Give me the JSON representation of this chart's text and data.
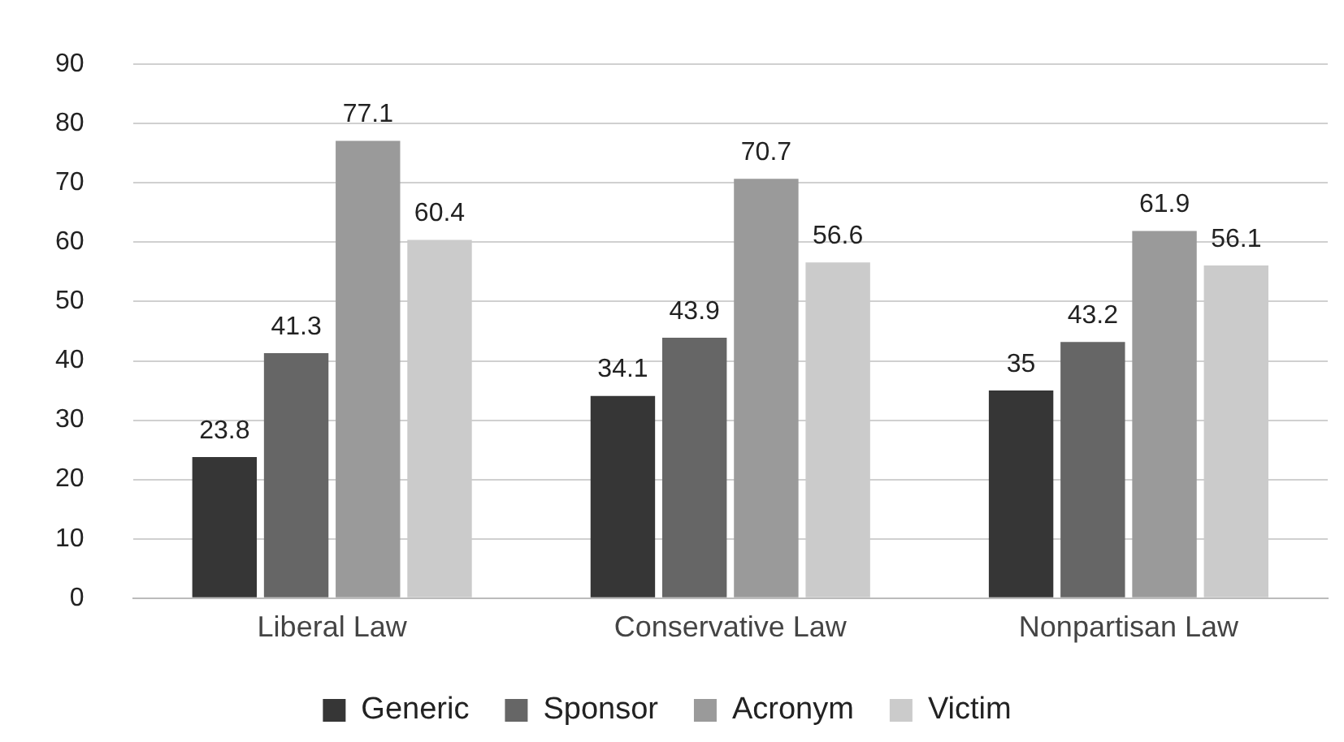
{
  "chart_data": {
    "type": "bar",
    "categories": [
      "Liberal Law",
      "Conservative Law",
      "Nonpartisan Law"
    ],
    "series": [
      {
        "name": "Generic",
        "color": "#363636",
        "values": [
          23.8,
          34.1,
          35
        ]
      },
      {
        "name": "Sponsor",
        "color": "#666666",
        "values": [
          41.3,
          43.9,
          43.2
        ]
      },
      {
        "name": "Acronym",
        "color": "#9a9a9a",
        "values": [
          77.1,
          70.7,
          61.9
        ]
      },
      {
        "name": "Victim",
        "color": "#cbcbcb",
        "values": [
          60.4,
          56.6,
          56.1
        ]
      }
    ],
    "ylim": [
      0,
      90
    ],
    "yticks": [
      0,
      10,
      20,
      30,
      40,
      50,
      60,
      70,
      80,
      90
    ],
    "grid": "y",
    "legend": "bottom",
    "data_labels": true
  }
}
